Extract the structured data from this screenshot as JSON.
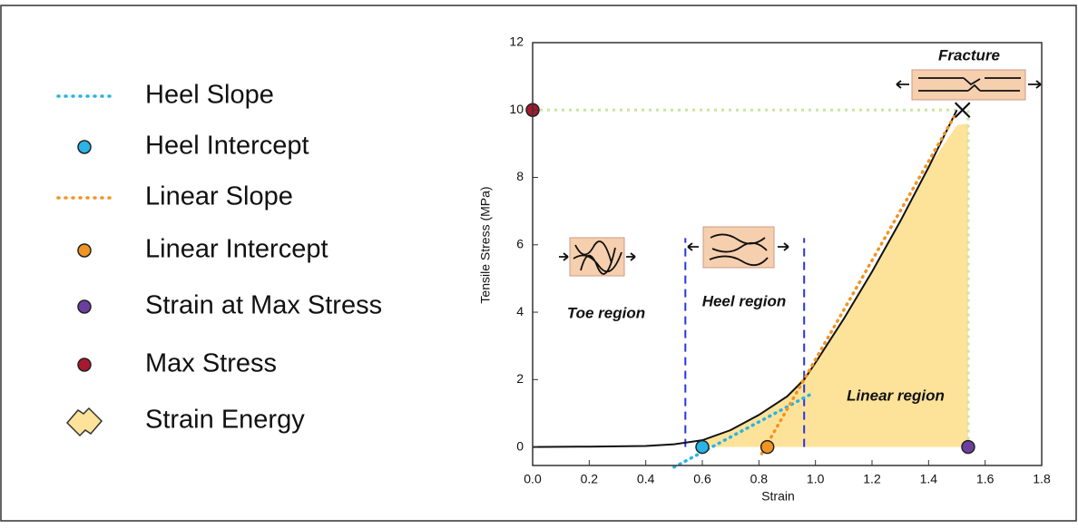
{
  "chart_data": {
    "type": "stress-strain",
    "x_label": "Strain",
    "y_label": "Tensile Stress (MPa)",
    "xlim": [
      0,
      1.8
    ],
    "ylim": [
      -0.55,
      12
    ],
    "xticks": [
      {
        "value": 0,
        "label": "0.0"
      },
      0.2,
      0.4,
      0.6,
      0.8,
      {
        "value": 1,
        "label": "1.0"
      },
      1.2,
      1.4,
      1.6,
      1.8
    ],
    "yticks": [
      0,
      2,
      4,
      6,
      8,
      10,
      12
    ],
    "curve": {
      "color": "#111111",
      "x": [
        0,
        0.2,
        0.4,
        0.5,
        0.6,
        0.7,
        0.8,
        0.9,
        0.96,
        1.0,
        1.1,
        1.2,
        1.3,
        1.4,
        1.5
      ],
      "values": [
        0,
        0.01,
        0.03,
        0.08,
        0.2,
        0.5,
        0.95,
        1.5,
        2.0,
        2.5,
        3.8,
        5.2,
        6.7,
        8.3,
        10
      ]
    },
    "fracture_point": {
      "x": 1.52,
      "y": 10
    },
    "region_bounds": [
      0.54,
      0.96
    ],
    "annotations": [
      "Toe region",
      "Heel region",
      "Linear region",
      "Fracture"
    ],
    "series": [
      {
        "name": "Heel Slope",
        "kind": "line",
        "color": "#2ab3e6",
        "x": [
          0.5,
          0.98
        ],
        "values": [
          -0.6,
          1.55
        ]
      },
      {
        "name": "Heel Intercept",
        "kind": "point",
        "color": "#2ab3e6",
        "x": [
          0.6
        ],
        "values": [
          0
        ]
      },
      {
        "name": "Linear Slope",
        "kind": "line",
        "color": "#f29423",
        "x": [
          0.81,
          1.49
        ],
        "values": [
          -0.2,
          9.8
        ]
      },
      {
        "name": "Linear Intercept",
        "kind": "point",
        "color": "#f29423",
        "x": [
          0.83
        ],
        "values": [
          0
        ]
      },
      {
        "name": "Strain at Max Stress",
        "kind": "point",
        "color": "#6b3fa0",
        "x": [
          1.54
        ],
        "values": [
          0
        ]
      },
      {
        "name": "Max Stress",
        "kind": "point",
        "color": "#a6192e",
        "x": [
          0
        ],
        "values": [
          10
        ]
      },
      {
        "name": "Strain Energy",
        "kind": "area",
        "color": "#fde39a",
        "x": [
          0.6,
          0.7,
          0.8,
          0.9,
          1.0,
          1.1,
          1.2,
          1.3,
          1.4,
          1.5,
          1.54
        ],
        "values": [
          0.2,
          0.5,
          0.95,
          1.5,
          2.5,
          3.8,
          5.2,
          6.7,
          8.3,
          9.55,
          9.6
        ]
      }
    ]
  }
}
